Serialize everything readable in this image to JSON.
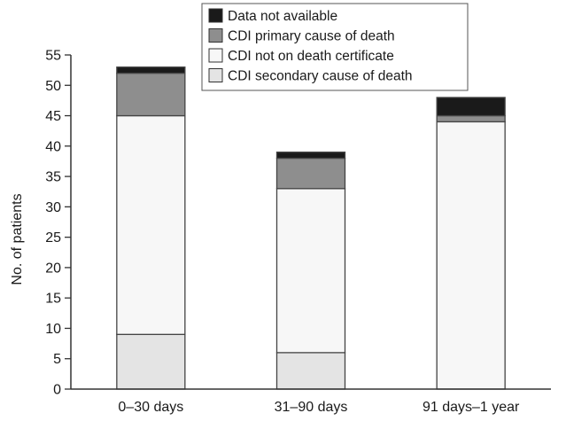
{
  "chart_data": {
    "type": "bar",
    "stacked": true,
    "categories": [
      "0–30 days",
      "31–90 days",
      "91 days–1 year"
    ],
    "series": [
      {
        "name": "CDI secondary cause of death",
        "color": "#e4e4e4",
        "values": [
          9,
          6,
          0
        ]
      },
      {
        "name": "CDI not on death certificate",
        "color": "#f7f7f7",
        "values": [
          36,
          27,
          44
        ]
      },
      {
        "name": "CDI primary cause of death",
        "color": "#8e8e8e",
        "values": [
          7,
          5,
          1
        ]
      },
      {
        "name": "Data not available",
        "color": "#1a1a1a",
        "values": [
          1,
          1,
          3
        ]
      }
    ],
    "legend_order": [
      "Data not available",
      "CDI primary cause of death",
      "CDI not on death certificate",
      "CDI secondary cause of death"
    ],
    "ylabel": "No. of patients",
    "xlabel": "",
    "ylim": [
      0,
      55
    ],
    "yticks": [
      0,
      5,
      10,
      15,
      20,
      25,
      30,
      35,
      40,
      45,
      50,
      55
    ],
    "grid": false,
    "legend_position": "top-center"
  }
}
